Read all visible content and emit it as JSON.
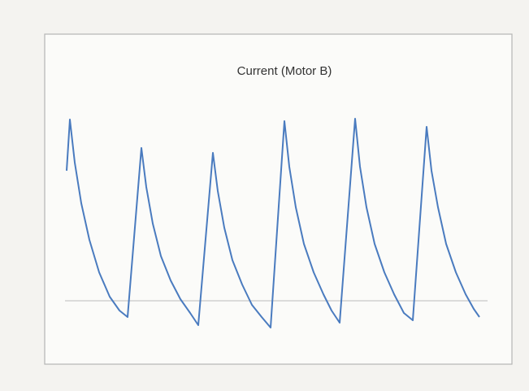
{
  "chart_data": {
    "type": "line",
    "title": "Current (Motor B)",
    "series": [
      {
        "color": "#4a7bbf",
        "x": [
          82,
          86,
          92,
          100,
          110,
          122,
          135,
          147,
          157,
          174,
          180,
          188,
          198,
          210,
          222,
          234,
          244,
          262,
          268,
          276,
          286,
          298,
          310,
          322,
          333,
          350,
          356,
          364,
          374,
          386,
          398,
          408,
          418,
          437,
          443,
          451,
          461,
          473,
          485,
          497,
          508,
          525,
          531,
          539,
          549,
          561,
          573,
          583,
          590
        ],
        "values": [
          16,
          22.3,
          17,
          12,
          7.5,
          3.5,
          0.5,
          -1.2,
          -2,
          18.8,
          14,
          9.5,
          5.5,
          2.5,
          0.2,
          -1.5,
          -3,
          18.2,
          13.5,
          9,
          5,
          2,
          -0.5,
          -2,
          -3.3,
          22.1,
          16.5,
          11.5,
          7,
          3.5,
          0.8,
          -1.2,
          -2.7,
          22.4,
          16.5,
          11.5,
          7,
          3.5,
          0.8,
          -1.5,
          -2.4,
          21.4,
          16,
          11.5,
          7,
          3.5,
          0.8,
          -1,
          -2
        ]
      }
    ]
  }
}
